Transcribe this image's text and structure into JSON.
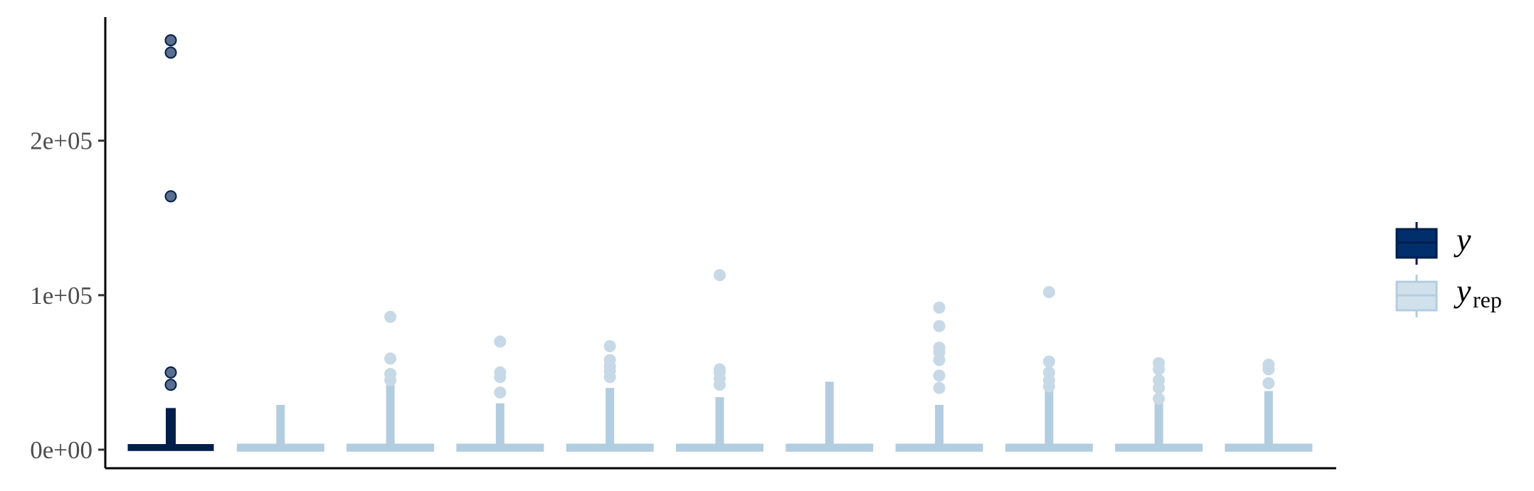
{
  "chart_data": {
    "type": "box",
    "title": "",
    "xlabel": "",
    "ylabel": "",
    "ylim": [
      -12000,
      280000
    ],
    "y_ticks": [
      0,
      100000,
      200000
    ],
    "y_tick_labels": [
      "0e+00",
      "1e+05",
      "2e+05"
    ],
    "grid": false,
    "legend_position": "right",
    "legend": [
      {
        "key": "y",
        "label": "y",
        "subscript": "",
        "fill": "#002f6c",
        "line": "#011f4b"
      },
      {
        "key": "yrep",
        "label": "y",
        "subscript": "rep",
        "fill": "#d1e1ec",
        "line": "#b3cde0"
      }
    ],
    "boxes": [
      {
        "series": "y",
        "whisker_top": 27000,
        "q3": 2500,
        "median": 800,
        "q1": 300,
        "whisker_bottom": 0,
        "outliers": [
          265000,
          257000,
          164000,
          50000,
          42000
        ]
      },
      {
        "series": "yrep",
        "whisker_top": 29000,
        "q3": 2300,
        "median": 800,
        "q1": 300,
        "whisker_bottom": 0,
        "outliers": []
      },
      {
        "series": "yrep",
        "whisker_top": 42000,
        "q3": 2300,
        "median": 800,
        "q1": 300,
        "whisker_bottom": 0,
        "outliers": [
          86000,
          59000,
          49000,
          45000
        ]
      },
      {
        "series": "yrep",
        "whisker_top": 30000,
        "q3": 2300,
        "median": 800,
        "q1": 300,
        "whisker_bottom": 0,
        "outliers": [
          70000,
          50000,
          47000,
          37000
        ]
      },
      {
        "series": "yrep",
        "whisker_top": 40000,
        "q3": 2300,
        "median": 800,
        "q1": 300,
        "whisker_bottom": 0,
        "outliers": [
          67000,
          58000,
          54000,
          51000,
          47000
        ]
      },
      {
        "series": "yrep",
        "whisker_top": 34000,
        "q3": 2300,
        "median": 800,
        "q1": 300,
        "whisker_bottom": 0,
        "outliers": [
          113000,
          52000,
          50000,
          46000,
          42000
        ]
      },
      {
        "series": "yrep",
        "whisker_top": 44000,
        "q3": 2300,
        "median": 800,
        "q1": 300,
        "whisker_bottom": 0,
        "outliers": []
      },
      {
        "series": "yrep",
        "whisker_top": 29000,
        "q3": 2300,
        "median": 800,
        "q1": 300,
        "whisker_bottom": 0,
        "outliers": [
          92000,
          80000,
          66000,
          63000,
          58000,
          48000,
          40000
        ]
      },
      {
        "series": "yrep",
        "whisker_top": 38000,
        "q3": 2300,
        "median": 800,
        "q1": 300,
        "whisker_bottom": 0,
        "outliers": [
          102000,
          57000,
          50000,
          45000,
          41000
        ]
      },
      {
        "series": "yrep",
        "whisker_top": 30000,
        "q3": 2300,
        "median": 800,
        "q1": 300,
        "whisker_bottom": 0,
        "outliers": [
          56000,
          52000,
          45000,
          40000,
          33000
        ]
      },
      {
        "series": "yrep",
        "whisker_top": 38000,
        "q3": 2300,
        "median": 800,
        "q1": 300,
        "whisker_bottom": 0,
        "outliers": [
          55000,
          52000,
          43000
        ]
      }
    ]
  }
}
